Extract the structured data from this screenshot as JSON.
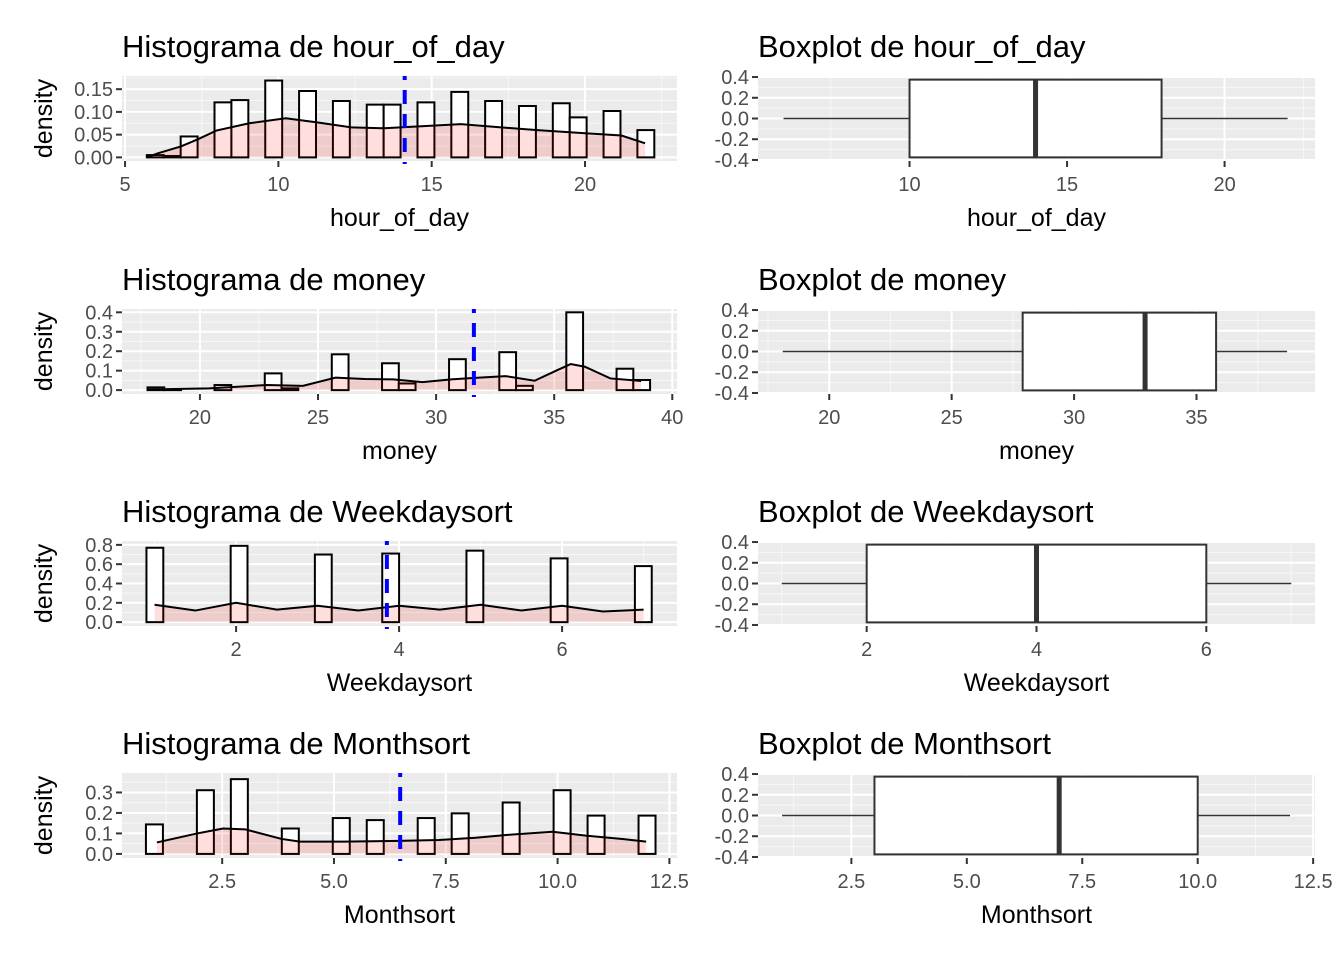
{
  "colors": {
    "panel_bg": "#EBEBEB",
    "grid": "#FFFFFF",
    "bar_fill": "#FFFFFF",
    "bar_stroke": "#000000",
    "density_fill": "#FF0000",
    "mean_line": "#0000FF",
    "box_stroke": "#333333"
  },
  "chart_data": [
    {
      "type": "bar",
      "kind": "histogram",
      "title": "Histograma de hour_of_day",
      "xlabel": "hour_of_day",
      "ylabel": "density",
      "xlim": [
        4.9,
        23.0
      ],
      "ylim": [
        -0.008,
        0.179
      ],
      "xticks": [
        5,
        10,
        15,
        20
      ],
      "xtick_labels": [
        "5",
        "10",
        "15",
        "20"
      ],
      "yticks": [
        0,
        0.05,
        0.1,
        0.15
      ],
      "ytick_labels": [
        "0.00",
        "0.05",
        "0.10",
        "0.15"
      ],
      "bins": {
        "min": 5.71,
        "max": 22.26,
        "density": [
          0.005,
          0.003,
          0.046,
          0,
          0.121,
          0.126,
          0,
          0.169,
          0,
          0.146,
          0,
          0.124,
          0,
          0.116,
          0.116,
          0,
          0.121,
          0,
          0.144,
          0,
          0.124,
          0,
          0.113,
          0,
          0.119,
          0.088,
          0,
          0.102,
          0,
          0.06
        ]
      },
      "density_curve": [
        [
          5.71,
          0
        ],
        [
          6.07,
          0.009
        ],
        [
          6.82,
          0.024
        ],
        [
          7.38,
          0.04
        ],
        [
          7.98,
          0.059
        ],
        [
          9.05,
          0.075
        ],
        [
          10.24,
          0.086
        ],
        [
          11.26,
          0.077
        ],
        [
          12.38,
          0.066
        ],
        [
          13.45,
          0.064
        ],
        [
          14.52,
          0.068
        ],
        [
          15.95,
          0.073
        ],
        [
          17.26,
          0.066
        ],
        [
          18.45,
          0.06
        ],
        [
          20.0,
          0.053
        ],
        [
          21.19,
          0.048
        ],
        [
          21.96,
          0.031
        ]
      ],
      "mean": 14.12
    },
    {
      "type": "box",
      "title": "Boxplot de hour_of_day",
      "xlabel": "hour_of_day",
      "xlim": [
        5.19,
        22.87
      ],
      "ylim": [
        -0.41,
        0.41
      ],
      "xticks": [
        10,
        15,
        20
      ],
      "xtick_labels": [
        "10",
        "15",
        "20"
      ],
      "yticks": [
        0.4,
        0.2,
        0,
        -0.2,
        -0.4
      ],
      "ytick_labels": [
        "0.4",
        "0.2",
        "0.0",
        "-0.2",
        "-0.4"
      ],
      "whisker_low": 6,
      "q1": 10,
      "median": 14,
      "q3": 18,
      "whisker_high": 22
    },
    {
      "type": "bar",
      "kind": "histogram",
      "title": "Histograma de money",
      "xlabel": "money",
      "ylabel": "density",
      "xlim": [
        16.7,
        40.2
      ],
      "ylim": [
        -0.02,
        0.417
      ],
      "xticks": [
        20,
        25,
        30,
        35,
        40
      ],
      "xtick_labels": [
        "20",
        "25",
        "30",
        "35",
        "40"
      ],
      "yticks": [
        0,
        0.1,
        0.2,
        0.3,
        0.4
      ],
      "ytick_labels": [
        "0.0",
        "0.1",
        "0.2",
        "0.3",
        "0.4"
      ],
      "bins": {
        "min": 17.78,
        "max": 39.06,
        "density": [
          0.014,
          0.003,
          0,
          0,
          0.026,
          0,
          0,
          0.086,
          0.009,
          0,
          0,
          0.184,
          0,
          0,
          0.138,
          0.034,
          0,
          0,
          0.159,
          0,
          0,
          0.195,
          0.022,
          0,
          0,
          0.4,
          0,
          0,
          0.11,
          0.052
        ]
      },
      "density_curve": [
        [
          17.78,
          0.003
        ],
        [
          20.38,
          0.009
        ],
        [
          22.83,
          0.026
        ],
        [
          24.36,
          0.022
        ],
        [
          25.74,
          0.064
        ],
        [
          26.97,
          0.057
        ],
        [
          28.19,
          0.055
        ],
        [
          29.42,
          0.041
        ],
        [
          30.64,
          0.055
        ],
        [
          31.56,
          0.062
        ],
        [
          32.94,
          0.072
        ],
        [
          34.17,
          0.048
        ],
        [
          35.08,
          0.1
        ],
        [
          35.7,
          0.134
        ],
        [
          36.3,
          0.12
        ],
        [
          37.38,
          0.06
        ],
        [
          38.68,
          0.047
        ]
      ],
      "mean": 31.6
    },
    {
      "type": "box",
      "title": "Boxplot de money",
      "xlabel": "money",
      "xlim": [
        17.09,
        39.84
      ],
      "ylim": [
        -0.41,
        0.41
      ],
      "xticks": [
        20,
        25,
        30,
        35
      ],
      "xtick_labels": [
        "20",
        "25",
        "30",
        "35"
      ],
      "yticks": [
        0.4,
        0.2,
        0,
        -0.2,
        -0.4
      ],
      "ytick_labels": [
        "0.4",
        "0.2",
        "0.0",
        "-0.2",
        "-0.4"
      ],
      "whisker_low": 18.1,
      "q1": 27.9,
      "median": 32.9,
      "q3": 35.8,
      "whisker_high": 38.7
    },
    {
      "type": "bar",
      "kind": "histogram",
      "title": "Histograma de Weekdaysort",
      "xlabel": "Weekdaysort",
      "ylabel": "density",
      "xlim": [
        0.6,
        7.41
      ],
      "ylim": [
        -0.04,
        0.84
      ],
      "xticks": [
        2,
        4,
        6
      ],
      "xtick_labels": [
        "2",
        "4",
        "6"
      ],
      "yticks": [
        0,
        0.2,
        0.4,
        0.6,
        0.8
      ],
      "ytick_labels": [
        "0.0",
        "0.2",
        "0.4",
        "0.6",
        "0.8"
      ],
      "bins": {
        "min": 0.9,
        "max": 7.1,
        "density": [
          0.77,
          0,
          0,
          0,
          0,
          0.79,
          0,
          0,
          0,
          0,
          0.7,
          0,
          0,
          0,
          0.71,
          0,
          0,
          0,
          0,
          0.74,
          0,
          0,
          0,
          0,
          0.66,
          0,
          0,
          0,
          0,
          0.58
        ]
      },
      "density_curve": [
        [
          1.0,
          0.18
        ],
        [
          1.5,
          0.12
        ],
        [
          2.0,
          0.2
        ],
        [
          2.5,
          0.13
        ],
        [
          3.0,
          0.17
        ],
        [
          3.5,
          0.12
        ],
        [
          4.0,
          0.17
        ],
        [
          4.5,
          0.13
        ],
        [
          5.0,
          0.18
        ],
        [
          5.5,
          0.12
        ],
        [
          6.0,
          0.17
        ],
        [
          6.5,
          0.11
        ],
        [
          7.0,
          0.13
        ]
      ],
      "mean": 3.85
    },
    {
      "type": "box",
      "title": "Boxplot de Weekdaysort",
      "xlabel": "Weekdaysort",
      "xlim": [
        0.72,
        7.28
      ],
      "ylim": [
        -0.41,
        0.41
      ],
      "xticks": [
        2,
        4,
        6
      ],
      "xtick_labels": [
        "2",
        "4",
        "6"
      ],
      "yticks": [
        0.4,
        0.2,
        0,
        -0.2,
        -0.4
      ],
      "ytick_labels": [
        "0.4",
        "0.2",
        "0.0",
        "-0.2",
        "-0.4"
      ],
      "whisker_low": 1,
      "q1": 2,
      "median": 4,
      "q3": 6,
      "whisker_high": 7
    },
    {
      "type": "bar",
      "kind": "histogram",
      "title": "Histograma de Monthsort",
      "xlabel": "Monthsort",
      "ylabel": "density",
      "xlim": [
        0.26,
        12.67
      ],
      "ylim": [
        -0.02,
        0.395
      ],
      "xticks": [
        2.5,
        5.0,
        7.5,
        10.0,
        12.5
      ],
      "xtick_labels": [
        "2.5",
        "5.0",
        "7.5",
        "10.0",
        "12.5"
      ],
      "yticks": [
        0,
        0.1,
        0.2,
        0.3
      ],
      "ytick_labels": [
        "0.0",
        "0.1",
        "0.2",
        "0.3"
      ],
      "bins": {
        "min": 0.795,
        "max": 12.19,
        "density": [
          0.144,
          0,
          0,
          0.311,
          0,
          0.365,
          0,
          0,
          0.124,
          0,
          0,
          0.175,
          0,
          0.165,
          0,
          0,
          0.175,
          0,
          0.198,
          0,
          0,
          0.251,
          0,
          0,
          0.311,
          0,
          0.187,
          0,
          0,
          0.187
        ]
      },
      "density_curve": [
        [
          1.04,
          0.056
        ],
        [
          1.94,
          0.1
        ],
        [
          2.52,
          0.124
        ],
        [
          3.01,
          0.12
        ],
        [
          3.83,
          0.073
        ],
        [
          4.24,
          0.06
        ],
        [
          5.22,
          0.06
        ],
        [
          6.29,
          0.063
        ],
        [
          7.35,
          0.068
        ],
        [
          8.17,
          0.079
        ],
        [
          9.0,
          0.095
        ],
        [
          9.89,
          0.108
        ],
        [
          10.63,
          0.089
        ],
        [
          11.45,
          0.073
        ],
        [
          11.98,
          0.06
        ]
      ],
      "mean": 6.48
    },
    {
      "type": "box",
      "title": "Boxplot de Monthsort",
      "xlabel": "Monthsort",
      "xlim": [
        0.478,
        12.54
      ],
      "ylim": [
        -0.41,
        0.41
      ],
      "xticks": [
        2.5,
        5.0,
        7.5,
        10.0,
        12.5
      ],
      "xtick_labels": [
        "2.5",
        "5.0",
        "7.5",
        "10.0",
        "12.5"
      ],
      "yticks": [
        0.4,
        0.2,
        0,
        -0.2,
        -0.4
      ],
      "ytick_labels": [
        "0.4",
        "0.2",
        "0.0",
        "-0.2",
        "-0.4"
      ],
      "whisker_low": 1,
      "q1": 3,
      "median": 7,
      "q3": 10,
      "whisker_high": 12
    }
  ]
}
